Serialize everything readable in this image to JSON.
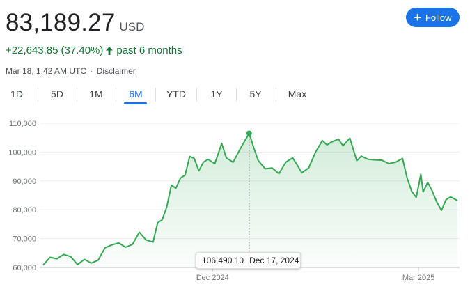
{
  "header": {
    "price": "83,189.27",
    "currency": "USD",
    "follow_label": "Follow"
  },
  "change": {
    "amount": "+22,643.85",
    "percent": "(37.40%)",
    "direction": "up",
    "period": "past 6 months"
  },
  "meta": {
    "timestamp": "Mar 18, 1:42 AM UTC",
    "separator": "·",
    "disclaimer": "Disclaimer"
  },
  "tabs": [
    {
      "label": "1D",
      "active": false
    },
    {
      "label": "5D",
      "active": false
    },
    {
      "label": "1M",
      "active": false
    },
    {
      "label": "6M",
      "active": true
    },
    {
      "label": "YTD",
      "active": false
    },
    {
      "label": "1Y",
      "active": false
    },
    {
      "label": "5Y",
      "active": false
    },
    {
      "label": "Max",
      "active": false
    }
  ],
  "tooltip": {
    "value": "106,490.10",
    "date": "Dec 17, 2024"
  },
  "colors": {
    "accent": "#1a73e8",
    "line": "#34a853",
    "positive": "#137333"
  },
  "chart_data": {
    "type": "area",
    "ylim": [
      60000,
      110000
    ],
    "yticks": [
      60000,
      70000,
      80000,
      90000,
      100000,
      110000
    ],
    "ytick_labels": [
      "60,000",
      "70,000",
      "80,000",
      "90,000",
      "100,000",
      "110,000"
    ],
    "xtick_labels": [
      "Dec 2024",
      "Mar 2025"
    ],
    "xtick_dates": [
      "2024-12-01",
      "2025-03-01"
    ],
    "grid": true,
    "highlight": {
      "x": "2024-12-17",
      "y": 106490.1
    },
    "series": [
      {
        "x": [
          "2024-09-18",
          "2024-09-21",
          "2024-09-24",
          "2024-09-27",
          "2024-09-30",
          "2024-10-03",
          "2024-10-06",
          "2024-10-09",
          "2024-10-12",
          "2024-10-15",
          "2024-10-18",
          "2024-10-21",
          "2024-10-24",
          "2024-10-27",
          "2024-10-30",
          "2024-11-02",
          "2024-11-05",
          "2024-11-07",
          "2024-11-09",
          "2024-11-11",
          "2024-11-13",
          "2024-11-15",
          "2024-11-17",
          "2024-11-19",
          "2024-11-21",
          "2024-11-23",
          "2024-11-25",
          "2024-11-27",
          "2024-11-29",
          "2024-12-02",
          "2024-12-05",
          "2024-12-07",
          "2024-12-10",
          "2024-12-13",
          "2024-12-15",
          "2024-12-17",
          "2024-12-19",
          "2024-12-21",
          "2024-12-24",
          "2024-12-27",
          "2024-12-30",
          "2025-01-02",
          "2025-01-05",
          "2025-01-07",
          "2025-01-09",
          "2025-01-12",
          "2025-01-15",
          "2025-01-18",
          "2025-01-20",
          "2025-01-22",
          "2025-01-25",
          "2025-01-27",
          "2025-01-30",
          "2025-02-02",
          "2025-02-04",
          "2025-02-07",
          "2025-02-10",
          "2025-02-13",
          "2025-02-16",
          "2025-02-19",
          "2025-02-22",
          "2025-02-24",
          "2025-02-26",
          "2025-02-28",
          "2025-03-02",
          "2025-03-03",
          "2025-03-05",
          "2025-03-07",
          "2025-03-09",
          "2025-03-11",
          "2025-03-13",
          "2025-03-15",
          "2025-03-18"
        ],
        "values": [
          60800,
          63500,
          63000,
          64500,
          63800,
          61000,
          62800,
          61500,
          62500,
          66800,
          67800,
          68500,
          67000,
          68000,
          72200,
          69500,
          68800,
          75500,
          76500,
          81000,
          88500,
          87500,
          91000,
          92000,
          98500,
          97800,
          93500,
          96500,
          97500,
          96000,
          103000,
          98000,
          96500,
          101000,
          103800,
          106490,
          101500,
          97000,
          94200,
          94500,
          92500,
          96500,
          98000,
          95500,
          92800,
          94500,
          100000,
          104000,
          102500,
          103500,
          104500,
          102200,
          104800,
          97000,
          98600,
          97500,
          97300,
          97200,
          96000,
          96500,
          97800,
          91000,
          86400,
          84300,
          92300,
          86200,
          89500,
          86500,
          82600,
          79800,
          83500,
          84500,
          83189
        ]
      }
    ]
  }
}
